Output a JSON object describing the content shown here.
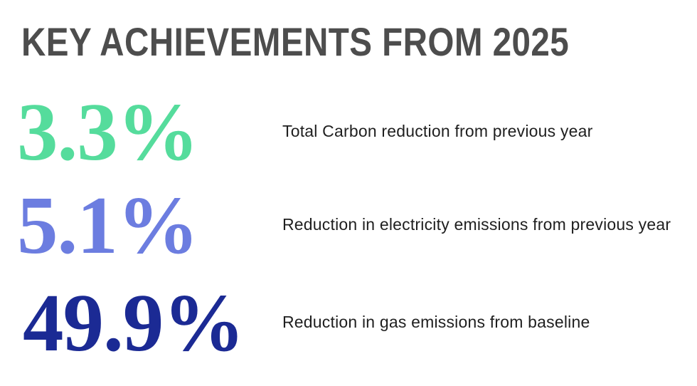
{
  "page": {
    "background_color": "#ffffff"
  },
  "header": {
    "title": "KEY ACHIEVEMENTS FROM 2025",
    "color": "#4d4d4d"
  },
  "label_color": "#1f1f1f",
  "stats": [
    {
      "value": "3.3%",
      "color": "#55dc9c",
      "label": "Total Carbon reduction from previous year"
    },
    {
      "value": "5.1%",
      "color": "#6c7de0",
      "label": "Reduction in electricity emissions from previous year"
    },
    {
      "value": "49.9%",
      "color": "#1b2a94",
      "label": "Reduction in gas emissions from baseline"
    }
  ]
}
